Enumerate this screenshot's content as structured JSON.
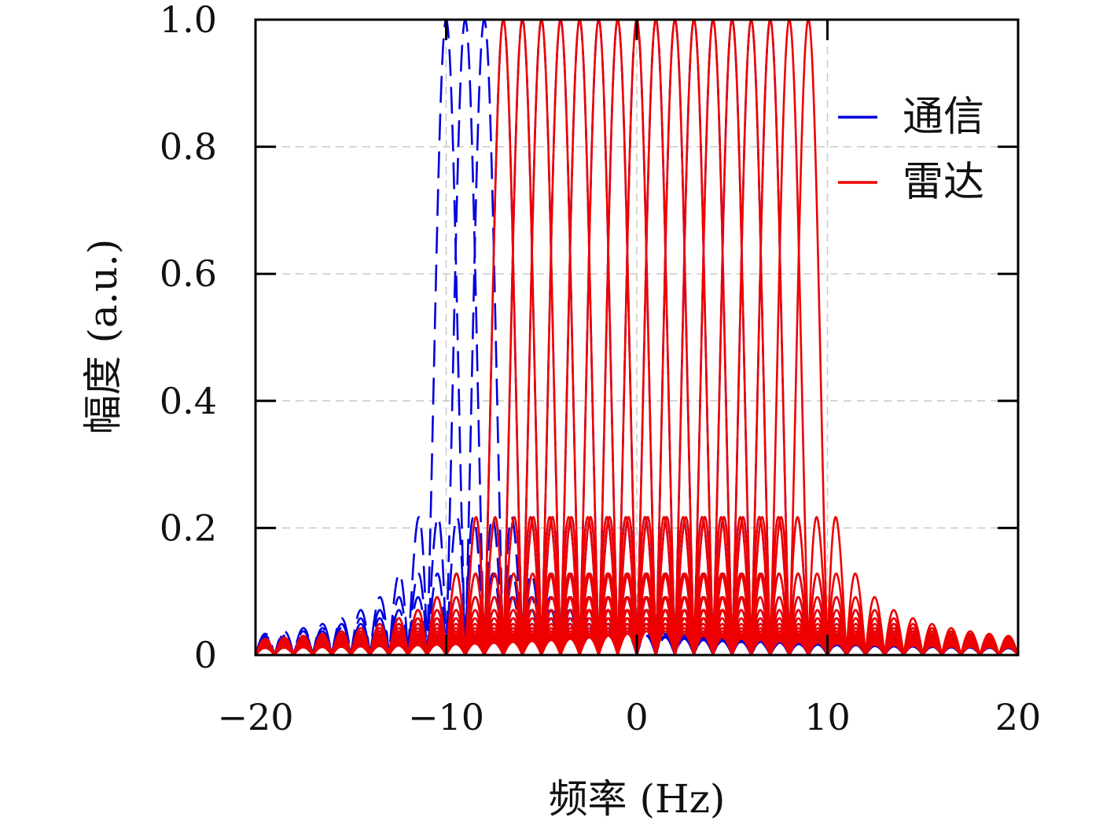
{
  "chart_data": {
    "type": "line",
    "title": "",
    "xlabel": "频率 (Hz)",
    "ylabel": "幅度 (a.u.)",
    "xlim": [
      -20,
      20
    ],
    "ylim": [
      0,
      1
    ],
    "xticks": [
      {
        "value": -20,
        "label": "−20"
      },
      {
        "value": -10,
        "label": "−10"
      },
      {
        "value": 0,
        "label": "0"
      },
      {
        "value": 10,
        "label": "10"
      },
      {
        "value": 20,
        "label": "20"
      }
    ],
    "yticks": [
      {
        "value": 0,
        "label": "0"
      },
      {
        "value": 0.2,
        "label": "0.2"
      },
      {
        "value": 0.4,
        "label": "0.4"
      },
      {
        "value": 0.6,
        "label": "0.6"
      },
      {
        "value": 0.8,
        "label": "0.8"
      },
      {
        "value": 1.0,
        "label": "1.0"
      }
    ],
    "grid": true,
    "legend_position": "top-right",
    "function": "abs(sinc(f - center))",
    "series": [
      {
        "name": "通信",
        "color": "#0000dd",
        "style": "dashed",
        "centers": [
          -10,
          -9,
          -8,
          -7,
          -6,
          -5,
          -4,
          -3,
          -2,
          -1,
          0,
          1,
          2,
          3,
          4,
          5,
          6,
          7
        ]
      },
      {
        "name": "雷达",
        "color": "#ee0000",
        "style": "solid",
        "centers": [
          -7,
          -6,
          -5,
          -4,
          -3,
          -2,
          -1,
          0,
          1,
          2,
          3,
          4,
          5,
          6,
          7,
          8,
          9
        ]
      }
    ]
  }
}
